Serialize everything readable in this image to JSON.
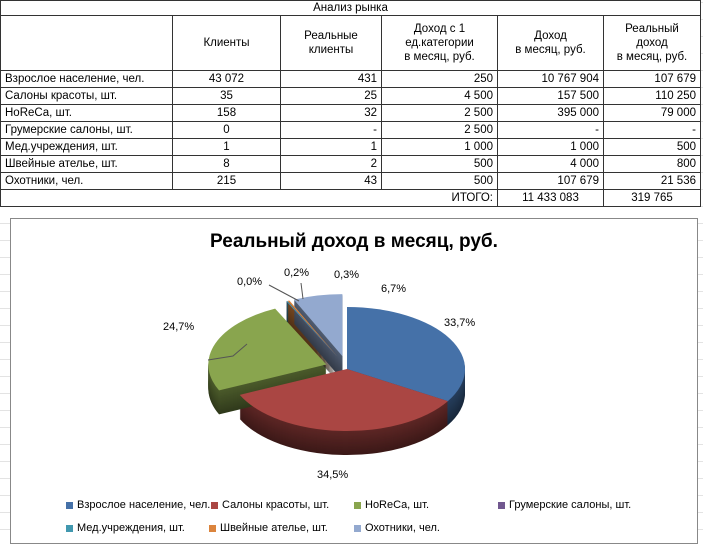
{
  "table": {
    "title": "Анализ рынка",
    "headers": [
      "",
      "Клиенты",
      "Реальные клиенты",
      "Доход с 1 ед.категории в месяц, руб.",
      "Доход в месяц, руб.",
      "Реальный доход в месяц, руб."
    ],
    "header_lines": [
      [
        ""
      ],
      [
        "Клиенты"
      ],
      [
        "Реальные",
        "клиенты"
      ],
      [
        "Доход с 1",
        "ед.категории",
        "в месяц, руб."
      ],
      [
        "Доход",
        "в месяц, руб."
      ],
      [
        "Реальный",
        "доход",
        "в месяц, руб."
      ]
    ],
    "rows": [
      [
        "Взрослое население, чел.",
        "43 072",
        "431",
        "250",
        "10 767 904",
        "107 679"
      ],
      [
        "Салоны красоты, шт.",
        "35",
        "25",
        "4 500",
        "157 500",
        "110 250"
      ],
      [
        "HoReCa, шт.",
        "158",
        "32",
        "2 500",
        "395 000",
        "79 000"
      ],
      [
        "Грумерские салоны, шт.",
        "0",
        "-",
        "2 500",
        "-",
        "-"
      ],
      [
        "Мед.учреждения, шт.",
        "1",
        "1",
        "1 000",
        "1 000",
        "500"
      ],
      [
        "Швейные ателье, шт.",
        "8",
        "2",
        "500",
        "4 000",
        "800"
      ],
      [
        "Охотники, чел.",
        "215",
        "43",
        "500",
        "107 679",
        "21 536"
      ]
    ],
    "total_label": "ИТОГО:",
    "total_income": "11 433 083",
    "total_real": "319 765"
  },
  "chart_data": {
    "type": "pie",
    "title": "Реальный доход в месяц, руб.",
    "categories": [
      "Взрослое население, чел.",
      "Салоны красоты, шт.",
      "HoReCa, шт.",
      "Грумерские салоны, шт.",
      "Мед.учреждения, шт.",
      "Швейные ателье, шт.",
      "Охотники, чел."
    ],
    "values": [
      107679,
      110250,
      79000,
      0,
      500,
      800,
      21536
    ],
    "labels": [
      "33,7%",
      "34,5%",
      "24,7%",
      "0,0%",
      "0,2%",
      "0,3%",
      "6,7%"
    ],
    "colors": [
      "#4571a8",
      "#aa4643",
      "#89a54e",
      "#71588f",
      "#4198af",
      "#db843d",
      "#93a9cf"
    ],
    "legend_position": "bottom"
  }
}
